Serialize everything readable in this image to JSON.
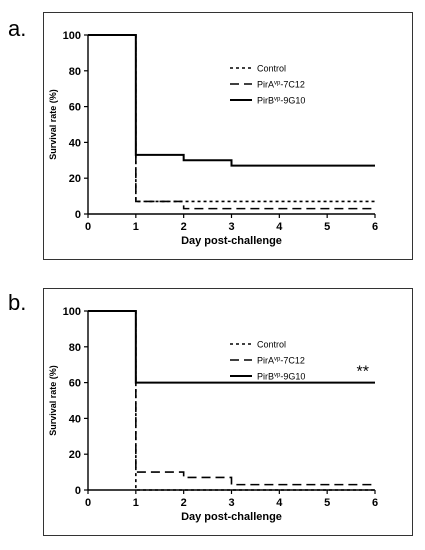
{
  "panel_labels": [
    "a.",
    "b."
  ],
  "chart_data": [
    {
      "type": "line",
      "step": true,
      "title": "",
      "xlabel": "Day post-challenge",
      "ylabel": "Survival rate (%)",
      "xlim": [
        0,
        6
      ],
      "ylim": [
        0,
        100
      ],
      "xticks": [
        "0",
        "1",
        "2",
        "3",
        "4",
        "5",
        "6"
      ],
      "yticks": [
        "0",
        "20",
        "40",
        "60",
        "80",
        "100"
      ],
      "grid": false,
      "legend_position": "top-right",
      "annotation": "",
      "series": [
        {
          "name": "Control",
          "line_style": "dotted",
          "x": [
            0,
            1,
            6
          ],
          "y": [
            100,
            7,
            7
          ]
        },
        {
          "name_base": "PirA",
          "name_sup": "vp",
          "name_suffix": "-7C12",
          "line_style": "dashed",
          "x": [
            0,
            1,
            2,
            6
          ],
          "y": [
            100,
            7,
            3,
            3
          ]
        },
        {
          "name_base": "PirB",
          "name_sup": "vp",
          "name_suffix": "-9G10",
          "line_style": "solid",
          "x": [
            0,
            1,
            2,
            3,
            6
          ],
          "y": [
            100,
            33,
            30,
            27,
            27
          ]
        }
      ]
    },
    {
      "type": "line",
      "step": true,
      "title": "",
      "xlabel": "Day post-challenge",
      "ylabel": "Survival rate (%)",
      "xlim": [
        0,
        6
      ],
      "ylim": [
        0,
        100
      ],
      "xticks": [
        "0",
        "1",
        "2",
        "3",
        "4",
        "5",
        "6"
      ],
      "yticks": [
        "0",
        "20",
        "40",
        "60",
        "80",
        "100"
      ],
      "grid": false,
      "legend_position": "top-right",
      "annotation": "**",
      "series": [
        {
          "name": "Control",
          "line_style": "dotted",
          "x": [
            0,
            1,
            6
          ],
          "y": [
            100,
            0,
            0
          ]
        },
        {
          "name_base": "PirA",
          "name_sup": "vp",
          "name_suffix": "-7C12",
          "line_style": "dashed",
          "x": [
            0,
            1,
            2,
            3,
            6
          ],
          "y": [
            100,
            10,
            7,
            3,
            3
          ]
        },
        {
          "name_base": "PirB",
          "name_sup": "vp",
          "name_suffix": "-9G10",
          "line_style": "solid",
          "x": [
            0,
            1,
            6
          ],
          "y": [
            100,
            60,
            60
          ]
        }
      ]
    }
  ]
}
